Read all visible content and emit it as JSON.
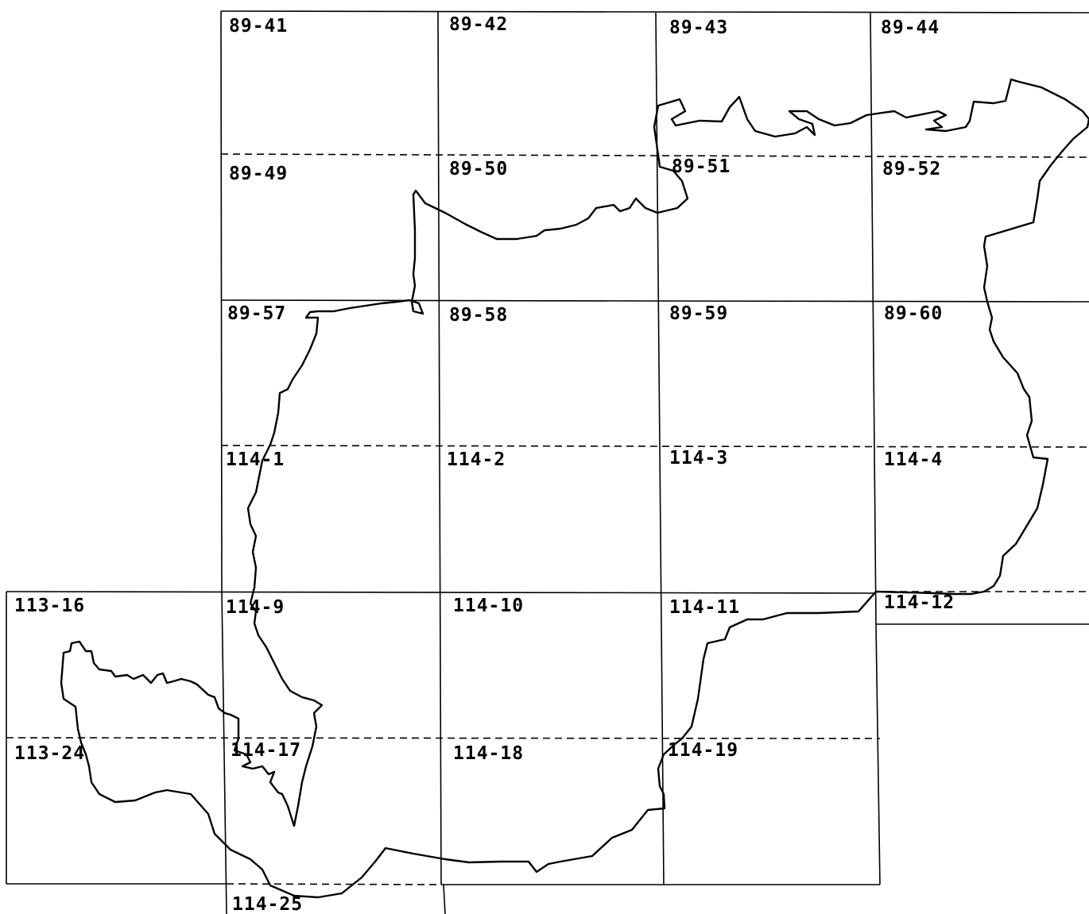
{
  "sheets": [
    "89-41",
    "89-42",
    "89-43",
    "89-44",
    "89-49",
    "89-50",
    "89-51",
    "89-52",
    "89-57",
    "89-58",
    "89-59",
    "89-60",
    "114-1",
    "114-2",
    "114-3",
    "114-4",
    "113-16",
    "114-9",
    "114-10",
    "114-11",
    "114-12",
    "113-24",
    "114-17",
    "114-18",
    "114-19",
    "114-25"
  ]
}
